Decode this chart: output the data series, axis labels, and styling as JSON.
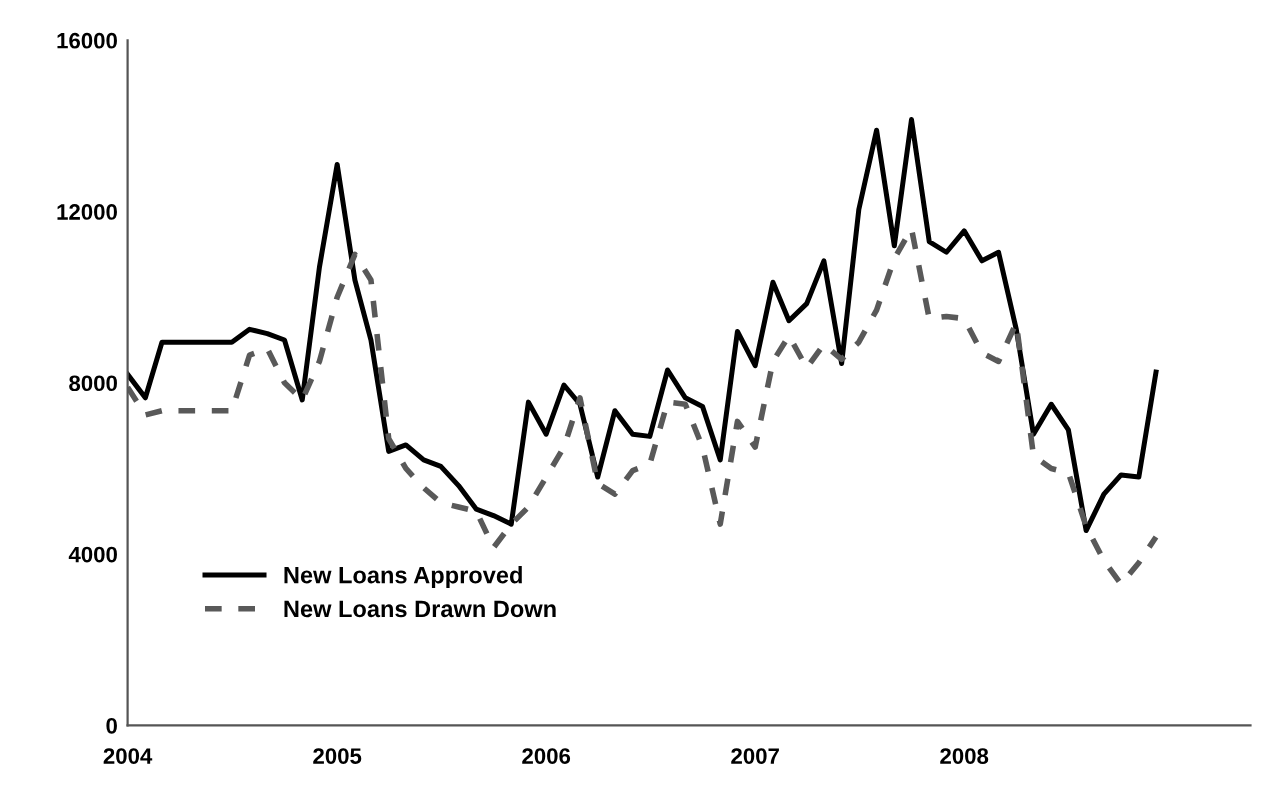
{
  "chart_data": {
    "type": "line",
    "x": [
      "2004-01",
      "2004-02",
      "2004-03",
      "2004-04",
      "2004-05",
      "2004-06",
      "2004-07",
      "2004-08",
      "2004-09",
      "2004-10",
      "2004-11",
      "2004-12",
      "2005-01",
      "2005-02",
      "2005-03",
      "2005-04",
      "2005-05",
      "2005-06",
      "2005-07",
      "2005-08",
      "2005-09",
      "2005-10",
      "2005-11",
      "2005-12",
      "2006-01",
      "2006-02",
      "2006-03",
      "2006-04",
      "2006-05",
      "2006-06",
      "2006-07",
      "2006-08",
      "2006-09",
      "2006-10",
      "2006-11",
      "2006-12",
      "2007-01",
      "2007-02",
      "2007-03",
      "2007-04",
      "2007-05",
      "2007-06",
      "2007-07",
      "2007-08",
      "2007-09",
      "2007-10",
      "2007-11",
      "2007-12",
      "2008-01",
      "2008-02",
      "2008-03",
      "2008-04",
      "2008-05",
      "2008-06",
      "2008-07",
      "2008-08",
      "2008-09",
      "2008-10",
      "2008-11",
      "2008-12"
    ],
    "series": [
      {
        "name": "New Loans Approved",
        "color": "#000000",
        "line_style": "solid",
        "values": [
          8200,
          7650,
          8950,
          8950,
          8950,
          8950,
          8950,
          9250,
          9150,
          9000,
          7600,
          10700,
          13100,
          10400,
          9000,
          6400,
          6550,
          6200,
          6050,
          5600,
          5050,
          4900,
          4700,
          7550,
          6800,
          7950,
          7500,
          5800,
          7350,
          6800,
          6750,
          8300,
          7650,
          7450,
          6200,
          9200,
          8400,
          10350,
          9450,
          9850,
          10850,
          8450,
          12050,
          13900,
          11200,
          14150,
          11300,
          11050,
          11550,
          10850,
          11050,
          9250,
          6800,
          7500,
          6900,
          4550,
          5400,
          5850,
          5800,
          8250
        ]
      },
      {
        "name": "New Loans Drawn Down",
        "color": "#595959",
        "line_style": "dashed",
        "values": [
          7900,
          7250,
          7350,
          7350,
          7350,
          7350,
          7350,
          8650,
          8800,
          8000,
          7600,
          8500,
          10000,
          11000,
          10400,
          6700,
          6000,
          5550,
          5200,
          5100,
          5000,
          4150,
          4700,
          5100,
          5800,
          6500,
          7650,
          5650,
          5400,
          5950,
          6100,
          7550,
          7500,
          6500,
          4700,
          7100,
          6500,
          8500,
          9100,
          8350,
          8900,
          8550,
          8950,
          9700,
          10900,
          11600,
          9500,
          9550,
          9500,
          8700,
          8500,
          9400,
          6300,
          6000,
          5900,
          4650,
          3850,
          3300,
          3800,
          4400
        ]
      }
    ],
    "xlim": [
      "2004-01-01",
      "2009-05-15"
    ],
    "xticks": [
      {
        "value": "2004-01-01",
        "label": "2004"
      },
      {
        "value": "2005-01-01",
        "label": "2005"
      },
      {
        "value": "2006-01-01",
        "label": "2006"
      },
      {
        "value": "2007-01-01",
        "label": "2007"
      },
      {
        "value": "2008-01-01",
        "label": "2008"
      }
    ],
    "ylim": [
      0,
      16000
    ],
    "yticks": [
      0,
      4000,
      8000,
      12000,
      16000
    ],
    "grid": false,
    "legend": "bottom left",
    "marker": "none"
  }
}
